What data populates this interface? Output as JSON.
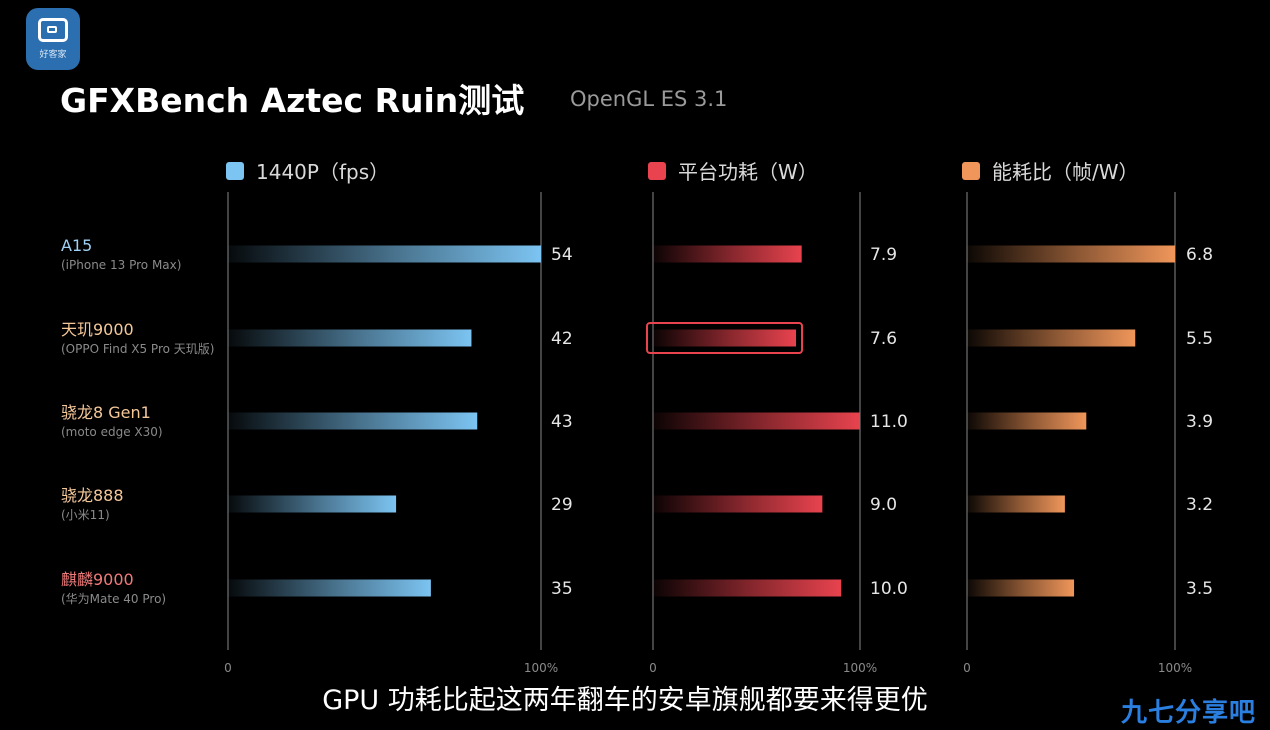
{
  "logo": {
    "text": "好客家",
    "icon": "video-card-icon"
  },
  "title": "GFXBench Aztec Ruin测试",
  "subtitle": "OpenGL ES 3.1",
  "caption": "GPU 功耗比起这两年翻车的安卓旗舰都要来得更优",
  "watermark": "九七分享吧",
  "colors": {
    "fps": "#7cc4f2",
    "power": "#e8434e",
    "efficiency": "#f0965a",
    "highlight_box": "#e8434e"
  },
  "chart_data": {
    "type": "bar",
    "orientation": "horizontal",
    "categories": [
      {
        "name": "A15",
        "device": "(iPhone 13 Pro Max)",
        "label_color": "#9fd0f5"
      },
      {
        "name": "天玑9000",
        "device": "(OPPO Find X5 Pro 天玑版)",
        "label_color": "#f5c89a"
      },
      {
        "name": "骁龙8 Gen1",
        "device": "(moto edge X30)",
        "label_color": "#f5c89a"
      },
      {
        "name": "骁龙888",
        "device": "(小米11)",
        "label_color": "#f5c89a"
      },
      {
        "name": "麒麟9000",
        "device": "(华为Mate 40 Pro)",
        "label_color": "#f07a7a"
      }
    ],
    "series": [
      {
        "name": "1440P（fps）",
        "key": "fps",
        "values": [
          54,
          42,
          43,
          29,
          35
        ],
        "labels": [
          "54",
          "42",
          "43",
          "29",
          "35"
        ],
        "xlim": [
          0,
          54
        ],
        "axis_labels": [
          "0",
          "100%"
        ]
      },
      {
        "name": "平台功耗（W）",
        "key": "power",
        "values": [
          7.9,
          7.6,
          11.0,
          9.0,
          10.0
        ],
        "labels": [
          "7.9",
          "7.6",
          "11.0",
          "9.0",
          "10.0"
        ],
        "xlim": [
          0,
          11.0
        ],
        "axis_labels": [
          "0",
          "100%"
        ],
        "highlight_index": 1
      },
      {
        "name": "能耗比（帧/W）",
        "key": "efficiency",
        "values": [
          6.8,
          5.5,
          3.9,
          3.2,
          3.5
        ],
        "labels": [
          "6.8",
          "5.5",
          "3.9",
          "3.2",
          "3.5"
        ],
        "xlim": [
          0,
          6.8
        ],
        "axis_labels": [
          "0",
          "100%"
        ]
      }
    ]
  }
}
